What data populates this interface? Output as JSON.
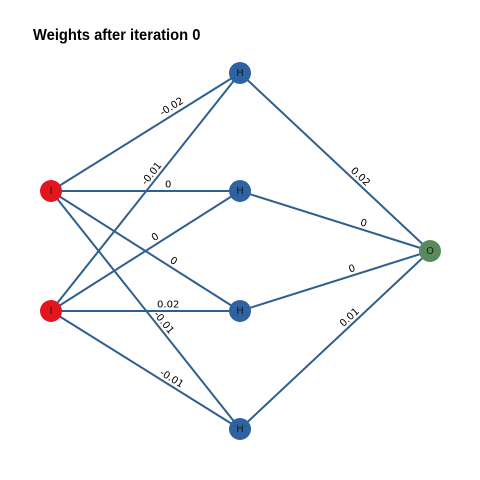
{
  "title": "Weights after iteration 0",
  "colors": {
    "edge": "#2f5f8f",
    "input_node": "#e3151f",
    "hidden_node": "#2f62a0",
    "output_node": "#5a8a5c"
  },
  "nodes": [
    {
      "id": "i1",
      "label": "I",
      "kind": "input"
    },
    {
      "id": "i2",
      "label": "I",
      "kind": "input"
    },
    {
      "id": "h1",
      "label": "H",
      "kind": "hidden"
    },
    {
      "id": "h2",
      "label": "H",
      "kind": "hidden"
    },
    {
      "id": "h3",
      "label": "H",
      "kind": "hidden"
    },
    {
      "id": "h4",
      "label": "H",
      "kind": "hidden"
    },
    {
      "id": "o1",
      "label": "O",
      "kind": "output"
    }
  ],
  "edges": [
    {
      "from": "i1",
      "to": "h1",
      "weight": "-0.02"
    },
    {
      "from": "i1",
      "to": "h2",
      "weight": "0"
    },
    {
      "from": "i1",
      "to": "h3",
      "weight": "0"
    },
    {
      "from": "i1",
      "to": "h4",
      "weight": "-0.01"
    },
    {
      "from": "i2",
      "to": "h1",
      "weight": "-0.01"
    },
    {
      "from": "i2",
      "to": "h2",
      "weight": "0"
    },
    {
      "from": "i2",
      "to": "h3",
      "weight": "0.02"
    },
    {
      "from": "i2",
      "to": "h4",
      "weight": "-0.01"
    },
    {
      "from": "h1",
      "to": "o1",
      "weight": "0.02"
    },
    {
      "from": "h2",
      "to": "o1",
      "weight": "0"
    },
    {
      "from": "h3",
      "to": "o1",
      "weight": "0"
    },
    {
      "from": "h4",
      "to": "o1",
      "weight": "0.01"
    }
  ]
}
